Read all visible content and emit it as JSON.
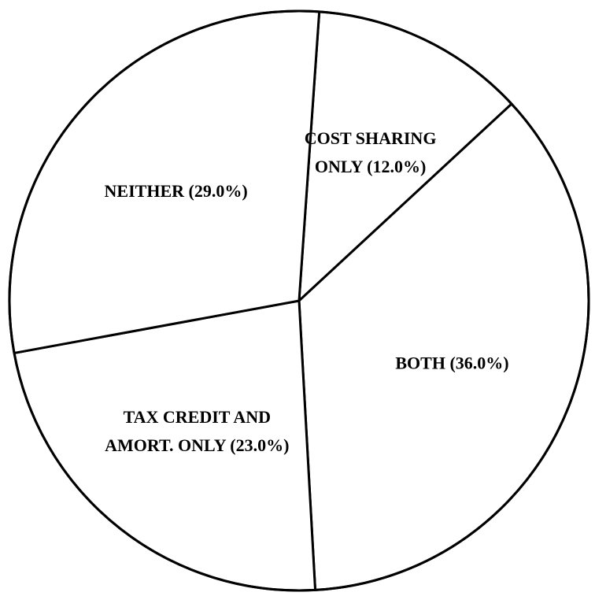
{
  "chart_data": {
    "type": "pie",
    "title": "",
    "slices": [
      {
        "label_lines": [
          "COST SHARING",
          "ONLY (12.0%)"
        ],
        "category": "COST SHARING ONLY",
        "value": 12.0
      },
      {
        "label_lines": [
          "BOTH (36.0%)"
        ],
        "category": "BOTH",
        "value": 36.0
      },
      {
        "label_lines": [
          "TAX CREDIT AND",
          "AMORT. ONLY (23.0%)"
        ],
        "category": "TAX CREDIT AND AMORT. ONLY",
        "value": 23.0
      },
      {
        "label_lines": [
          "NEITHER (29.0%)"
        ],
        "category": "NEITHER",
        "value": 29.0
      }
    ],
    "colors": {
      "fill": "#ffffff",
      "stroke": "#000000"
    },
    "legend": "none",
    "value_unit": "%"
  }
}
